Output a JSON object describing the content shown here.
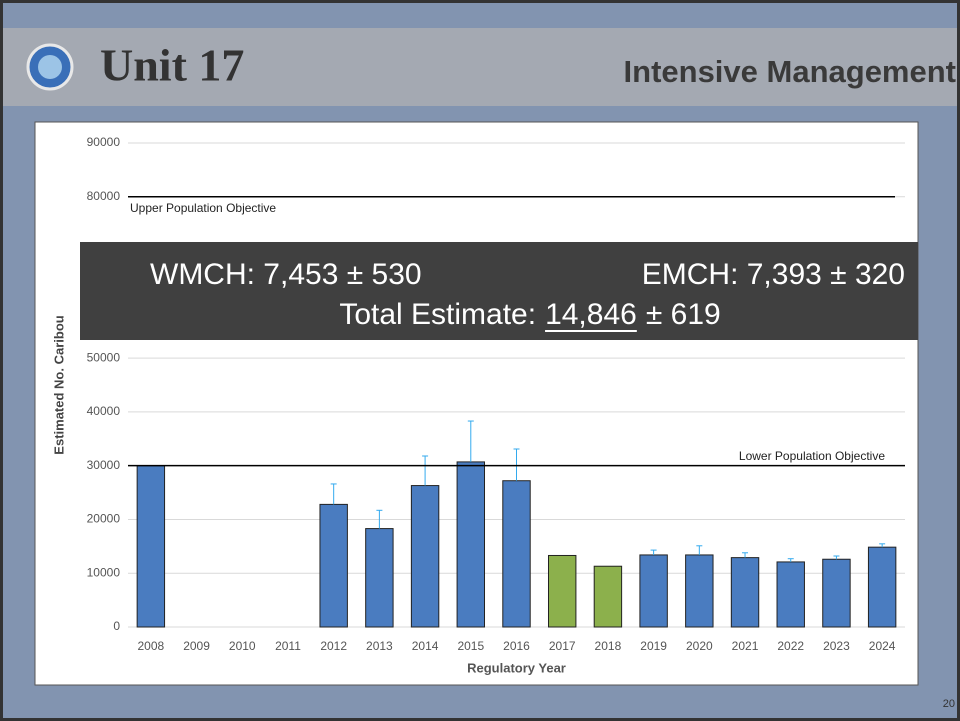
{
  "header": {
    "title": "Unit 17",
    "subtitle": "Intensive Management"
  },
  "page_number": "20",
  "overlay": {
    "line1_left": "WMCH: 7,453 ± 530",
    "line1_right": "EMCH: 7,393 ± 320",
    "line2_prefix": "Total Estimate:",
    "line2_value": "14,846",
    "line2_suffix": "± 619"
  },
  "chart_data": {
    "type": "bar",
    "x_label": "Regulatory Year",
    "y_label": "Estimated No. Caribou",
    "categories": [
      "2008",
      "2009",
      "2010",
      "2011",
      "2012",
      "2013",
      "2014",
      "2015",
      "2016",
      "2017",
      "2018",
      "2019",
      "2020",
      "2021",
      "2022",
      "2023",
      "2024"
    ],
    "values": [
      30000,
      null,
      null,
      null,
      22800,
      18300,
      26300,
      30700,
      27200,
      13300,
      11300,
      13400,
      13400,
      12900,
      12100,
      12600,
      14846
    ],
    "errors": [
      null,
      null,
      null,
      null,
      3800,
      3400,
      5500,
      7600,
      5900,
      null,
      null,
      900,
      1700,
      900,
      600,
      600,
      619
    ],
    "colors": [
      "#4a7cc0",
      "#4a7cc0",
      "#4a7cc0",
      "#4a7cc0",
      "#4a7cc0",
      "#4a7cc0",
      "#4a7cc0",
      "#4a7cc0",
      "#4a7cc0",
      "#8cb04c",
      "#8cb04c",
      "#4a7cc0",
      "#4a7cc0",
      "#4a7cc0",
      "#4a7cc0",
      "#4a7cc0",
      "#4a7cc0"
    ],
    "error_color": "#33aaee",
    "reference_lines": [
      {
        "value": 80000,
        "label": "Upper Population Objective"
      },
      {
        "value": 30000,
        "label": "Lower Population Objective"
      }
    ],
    "ylim": [
      0,
      90000
    ],
    "yticks": [
      0,
      10000,
      20000,
      30000,
      40000,
      50000,
      60000,
      70000,
      80000,
      90000
    ],
    "grid": true
  }
}
